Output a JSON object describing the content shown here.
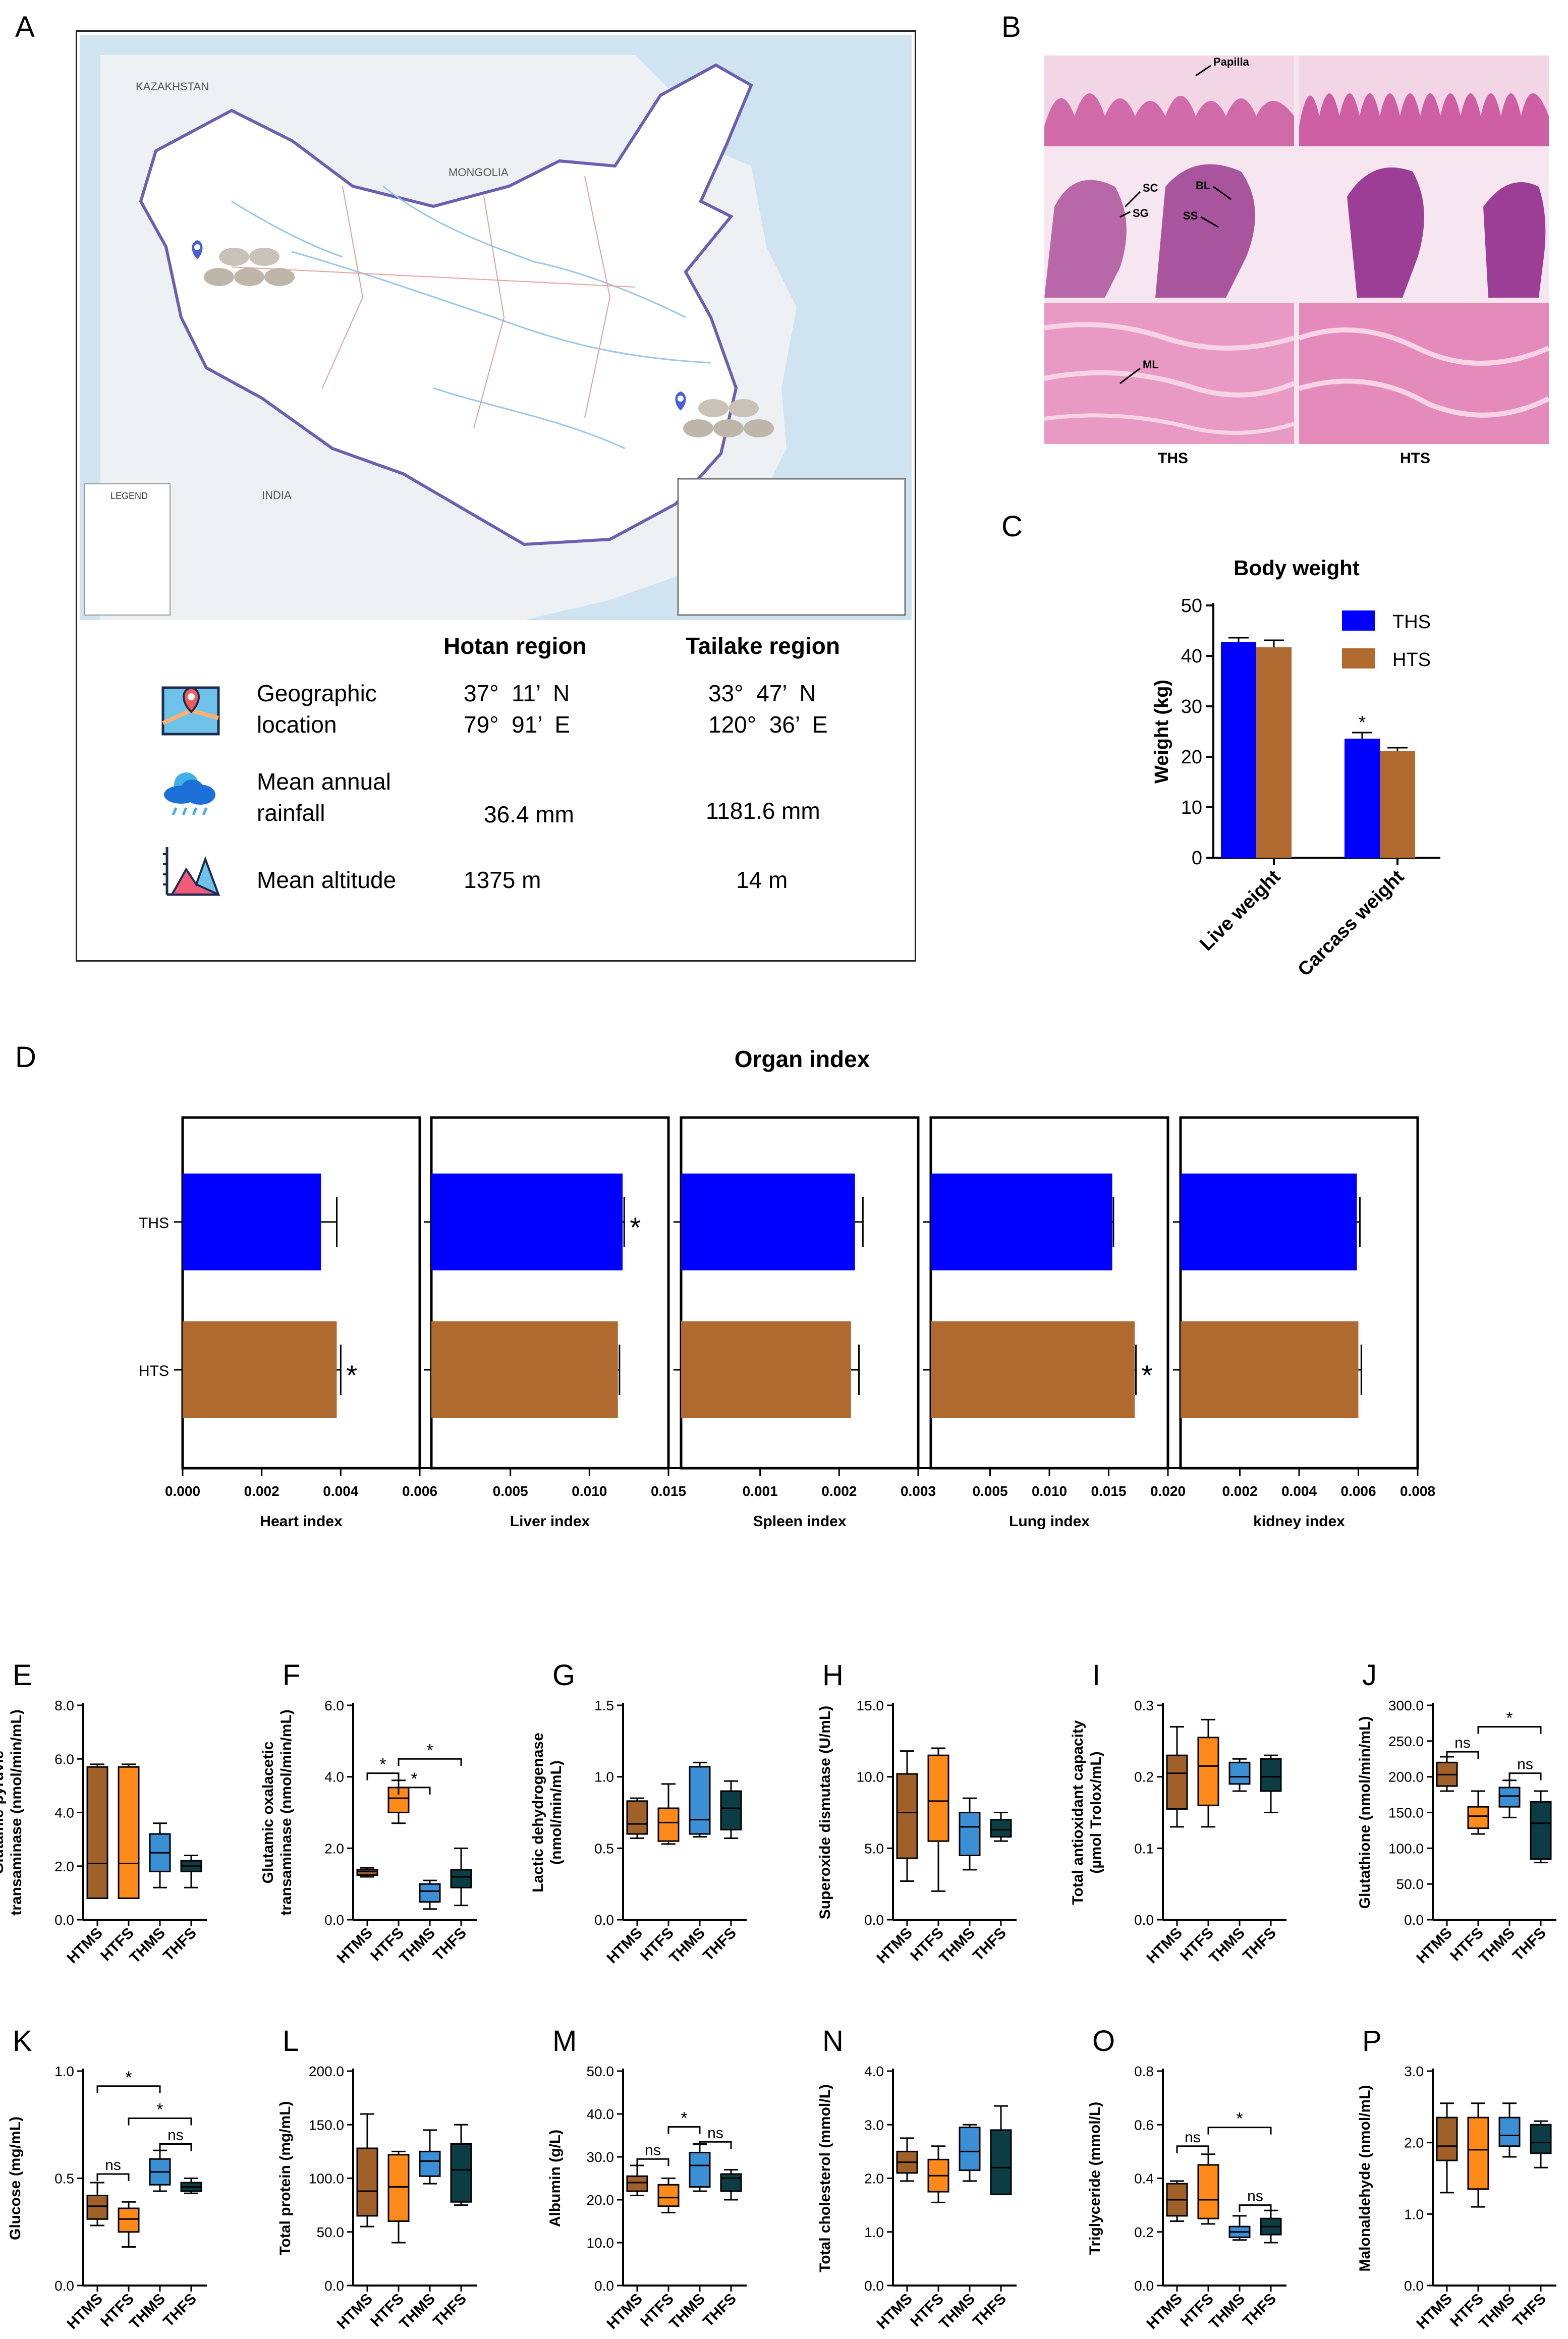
{
  "panels": {
    "A": "A",
    "B": "B",
    "C": "C",
    "D": "D",
    "E": "E",
    "F": "F",
    "G": "G",
    "H": "H",
    "I": "I",
    "J": "J",
    "K": "K",
    "L": "L",
    "M": "M",
    "N": "N",
    "O": "O",
    "P": "P"
  },
  "map": {
    "country_labels": [
      "KAZAKHSTAN",
      "MONGOLIA",
      "INDIA"
    ],
    "legend_title": "LEGEND",
    "pins": [
      "Hotan",
      "Tailake"
    ]
  },
  "info": {
    "col_hotan": "Hotan region",
    "col_tailake": "Tailake region",
    "rows": [
      {
        "icon": "map-location-icon",
        "label": "Geographic\nlocation",
        "hotan": "37°  11’  N\n79°  91’  E",
        "tailake": "33°  47’  N\n120°  36’  E"
      },
      {
        "icon": "rain-cloud-icon",
        "label": "Mean annual\nrainfall",
        "hotan": "36.4 mm",
        "tailake": "1181.6 mm"
      },
      {
        "icon": "mountain-altitude-icon",
        "label": "Mean altitude",
        "hotan": "1375 m",
        "tailake": "14 m"
      }
    ]
  },
  "histology": {
    "labels": [
      "Papilla",
      "SC",
      "SG",
      "BL",
      "SS",
      "ML"
    ],
    "captions": [
      "THS",
      "HTS"
    ]
  },
  "colors": {
    "ths": "#0000ff",
    "hts": "#b06a30",
    "htms": "#a0602a",
    "htfs": "#ff8a1a",
    "thms": "#3b8fd4",
    "thfs": "#0c3d44"
  },
  "chart_data": [
    {
      "id": "C",
      "type": "bar",
      "title": "Body weight",
      "ylabel": "Weight (kg)",
      "categories": [
        "Live weight",
        "Carcass weight"
      ],
      "series": [
        {
          "name": "THS",
          "values": [
            42.8,
            23.6
          ],
          "errors": [
            0.8,
            1.2
          ]
        },
        {
          "name": "HTS",
          "values": [
            41.7,
            21.1
          ],
          "errors": [
            1.4,
            0.7
          ]
        }
      ],
      "ylim": [
        0,
        50
      ],
      "yticks": [
        0,
        10,
        20,
        30,
        40,
        50
      ],
      "annotations": [
        {
          "category": "Carcass weight",
          "series": "THS",
          "text": "*"
        }
      ]
    },
    {
      "id": "D",
      "type": "bar",
      "orientation": "horizontal",
      "title": "Organ index",
      "groups": [
        "THS",
        "HTS"
      ],
      "subplots": [
        {
          "xlabel": "Heart index",
          "values": [
            0.0035,
            0.0039
          ],
          "errors": [
            0.0004,
            0.0001
          ],
          "xlim": [
            0,
            0.006
          ],
          "xticks": [
            "0.000",
            "0.002",
            "0.004",
            "0.006"
          ],
          "stars": [
            "",
            "*"
          ]
        },
        {
          "xlabel": "Liver index",
          "values": [
            0.0121,
            0.0118
          ],
          "errors": [
            0.0001,
            0.0001
          ],
          "xlim": [
            0,
            0.015
          ],
          "xticks": [
            "0.005",
            "0.010",
            "0.015"
          ],
          "stars": [
            "*",
            ""
          ]
        },
        {
          "xlabel": "Spleen index",
          "values": [
            0.0022,
            0.00215
          ],
          "errors": [
            0.0001,
            0.0001
          ],
          "xlim": [
            0,
            0.003
          ],
          "xticks": [
            "0.001",
            "0.002",
            "0.003"
          ],
          "stars": [
            "",
            ""
          ]
        },
        {
          "xlabel": "Lung index",
          "values": [
            0.0153,
            0.0172
          ],
          "errors": [
            0.0001,
            0.0001
          ],
          "xlim": [
            0,
            0.02
          ],
          "xticks": [
            "0.005",
            "0.010",
            "0.015",
            "0.020"
          ],
          "stars": [
            "",
            "*"
          ]
        },
        {
          "xlabel": "kidney index",
          "values": [
            0.00595,
            0.006
          ],
          "errors": [
            0.0001,
            0.0001
          ],
          "xlim": [
            0,
            0.008
          ],
          "xticks": [
            "0.002",
            "0.004",
            "0.006",
            "0.008"
          ],
          "stars": [
            "",
            ""
          ]
        }
      ]
    },
    {
      "id": "E",
      "type": "box",
      "ylabel": "Glutamic-pyruvic\ntransaminase (nmol/min/mL)",
      "categories": [
        "HTMS",
        "HTFS",
        "THMS",
        "THFS"
      ],
      "ylim": [
        0,
        8
      ],
      "yticks": [
        "0.0",
        "2.0",
        "4.0",
        "6.0",
        "8.0"
      ],
      "boxes": [
        {
          "min": 0.8,
          "q1": 0.8,
          "median": 2.1,
          "q3": 5.7,
          "max": 5.8
        },
        {
          "min": 0.8,
          "q1": 0.8,
          "median": 2.1,
          "q3": 5.7,
          "max": 5.8
        },
        {
          "min": 1.2,
          "q1": 1.8,
          "median": 2.5,
          "q3": 3.2,
          "max": 3.6
        },
        {
          "min": 1.2,
          "q1": 1.8,
          "median": 2.0,
          "q3": 2.2,
          "max": 2.4
        }
      ],
      "brackets": []
    },
    {
      "id": "F",
      "type": "box",
      "ylabel": "Glutamic oxalacetic\ntransaminase (nmol/min/mL)",
      "categories": [
        "HTMS",
        "HTFS",
        "THMS",
        "THFS"
      ],
      "ylim": [
        0,
        6
      ],
      "yticks": [
        "0.0",
        "2.0",
        "4.0",
        "6.0"
      ],
      "boxes": [
        {
          "min": 1.2,
          "q1": 1.25,
          "median": 1.35,
          "q3": 1.4,
          "max": 1.45
        },
        {
          "min": 2.7,
          "q1": 3.0,
          "median": 3.4,
          "q3": 3.7,
          "max": 3.9
        },
        {
          "min": 0.3,
          "q1": 0.5,
          "median": 0.8,
          "q3": 1.0,
          "max": 1.1
        },
        {
          "min": 0.4,
          "q1": 0.9,
          "median": 1.2,
          "q3": 1.4,
          "max": 2.0
        }
      ],
      "brackets": [
        {
          "from": 0,
          "to": 1,
          "y": 4.1,
          "text": "*"
        },
        {
          "from": 1,
          "to": 2,
          "y": 3.7,
          "text": "*"
        },
        {
          "from": 1,
          "to": 3,
          "y": 4.5,
          "text": "*"
        }
      ]
    },
    {
      "id": "G",
      "type": "box",
      "ylabel": "Lactic dehydrogenase\n(nmol/min/mL)",
      "categories": [
        "HTMS",
        "HTFS",
        "THMS",
        "THFS"
      ],
      "ylim": [
        0,
        1.5
      ],
      "yticks": [
        "0.0",
        "0.5",
        "1.0",
        "1.5"
      ],
      "boxes": [
        {
          "min": 0.57,
          "q1": 0.6,
          "median": 0.67,
          "q3": 0.83,
          "max": 0.85
        },
        {
          "min": 0.53,
          "q1": 0.55,
          "median": 0.68,
          "q3": 0.78,
          "max": 0.95
        },
        {
          "min": 0.58,
          "q1": 0.6,
          "median": 0.7,
          "q3": 1.07,
          "max": 1.1
        },
        {
          "min": 0.57,
          "q1": 0.63,
          "median": 0.78,
          "q3": 0.9,
          "max": 0.97
        }
      ],
      "brackets": []
    },
    {
      "id": "H",
      "type": "box",
      "ylabel": "Superoxide dismutase (U/mL)",
      "categories": [
        "HTMS",
        "HTFS",
        "THMS",
        "THFS"
      ],
      "ylim": [
        0,
        15
      ],
      "yticks": [
        "0.0",
        "5.0",
        "10.0",
        "15.0"
      ],
      "boxes": [
        {
          "min": 2.7,
          "q1": 4.3,
          "median": 7.5,
          "q3": 10.2,
          "max": 11.8
        },
        {
          "min": 2.0,
          "q1": 5.5,
          "median": 8.3,
          "q3": 11.5,
          "max": 12.0
        },
        {
          "min": 3.5,
          "q1": 4.5,
          "median": 6.5,
          "q3": 7.5,
          "max": 8.5
        },
        {
          "min": 5.5,
          "q1": 5.8,
          "median": 6.3,
          "q3": 7.0,
          "max": 7.5
        }
      ],
      "brackets": []
    },
    {
      "id": "I",
      "type": "box",
      "ylabel": "Total antioxidant capacity\n(µmol Trolox/mL)",
      "categories": [
        "HTMS",
        "HTFS",
        "THMS",
        "THFS"
      ],
      "ylim": [
        0,
        0.3
      ],
      "yticks": [
        "0.0",
        "0.1",
        "0.2",
        "0.3"
      ],
      "boxes": [
        {
          "min": 0.13,
          "q1": 0.155,
          "median": 0.205,
          "q3": 0.23,
          "max": 0.27
        },
        {
          "min": 0.13,
          "q1": 0.16,
          "median": 0.215,
          "q3": 0.255,
          "max": 0.28
        },
        {
          "min": 0.18,
          "q1": 0.19,
          "median": 0.2,
          "q3": 0.22,
          "max": 0.225
        },
        {
          "min": 0.15,
          "q1": 0.18,
          "median": 0.2,
          "q3": 0.225,
          "max": 0.23
        }
      ],
      "brackets": []
    },
    {
      "id": "J",
      "type": "box",
      "ylabel": "Glutathione (nmol/min/mL)",
      "categories": [
        "HTMS",
        "HTFS",
        "THMS",
        "THFS"
      ],
      "ylim": [
        0,
        300
      ],
      "yticks": [
        "0.0",
        "50.0",
        "100.0",
        "150.0",
        "200.0",
        "250.0",
        "300.0"
      ],
      "boxes": [
        {
          "min": 180,
          "q1": 187,
          "median": 203,
          "q3": 220,
          "max": 228
        },
        {
          "min": 120,
          "q1": 128,
          "median": 145,
          "q3": 158,
          "max": 180
        },
        {
          "min": 143,
          "q1": 158,
          "median": 173,
          "q3": 185,
          "max": 195
        },
        {
          "min": 80,
          "q1": 85,
          "median": 135,
          "q3": 165,
          "max": 180
        }
      ],
      "brackets": [
        {
          "from": 0,
          "to": 1,
          "y": 235,
          "text": "ns"
        },
        {
          "from": 1,
          "to": 3,
          "y": 270,
          "text": "*"
        },
        {
          "from": 2,
          "to": 3,
          "y": 205,
          "text": "ns"
        }
      ]
    },
    {
      "id": "K",
      "type": "box",
      "ylabel": "Glucose  (mg/mL)",
      "categories": [
        "HTMS",
        "HTFS",
        "THMS",
        "THFS"
      ],
      "ylim": [
        0,
        1.0
      ],
      "yticks": [
        "0.0",
        "0.5",
        "1.0"
      ],
      "boxes": [
        {
          "min": 0.28,
          "q1": 0.31,
          "median": 0.37,
          "q3": 0.42,
          "max": 0.48
        },
        {
          "min": 0.18,
          "q1": 0.25,
          "median": 0.31,
          "q3": 0.36,
          "max": 0.39
        },
        {
          "min": 0.44,
          "q1": 0.47,
          "median": 0.53,
          "q3": 0.59,
          "max": 0.63
        },
        {
          "min": 0.43,
          "q1": 0.44,
          "median": 0.46,
          "q3": 0.48,
          "max": 0.5
        }
      ],
      "brackets": [
        {
          "from": 0,
          "to": 1,
          "y": 0.52,
          "text": "ns"
        },
        {
          "from": 0,
          "to": 2,
          "y": 0.93,
          "text": "*"
        },
        {
          "from": 1,
          "to": 3,
          "y": 0.78,
          "text": "*"
        },
        {
          "from": 2,
          "to": 3,
          "y": 0.66,
          "text": "ns"
        }
      ]
    },
    {
      "id": "L",
      "type": "box",
      "ylabel": "Total protein (mg/mL)",
      "categories": [
        "HTMS",
        "HTFS",
        "THMS",
        "THFS"
      ],
      "ylim": [
        0,
        200
      ],
      "yticks": [
        "0.0",
        "50.0",
        "100.0",
        "150.0",
        "200.0"
      ],
      "boxes": [
        {
          "min": 55,
          "q1": 65,
          "median": 88,
          "q3": 128,
          "max": 160
        },
        {
          "min": 40,
          "q1": 60,
          "median": 92,
          "q3": 122,
          "max": 125
        },
        {
          "min": 95,
          "q1": 102,
          "median": 116,
          "q3": 125,
          "max": 145
        },
        {
          "min": 75,
          "q1": 78,
          "median": 108,
          "q3": 132,
          "max": 150
        }
      ],
      "brackets": []
    },
    {
      "id": "M",
      "type": "box",
      "ylabel": "Albumin (g/L)",
      "categories": [
        "HTMS",
        "HTFS",
        "THMS",
        "THFS"
      ],
      "ylim": [
        0,
        50
      ],
      "yticks": [
        "0.0",
        "10.0",
        "20.0",
        "30.0",
        "40.0",
        "50.0"
      ],
      "boxes": [
        {
          "min": 21,
          "q1": 22,
          "median": 24,
          "q3": 25.5,
          "max": 28
        },
        {
          "min": 17,
          "q1": 18.5,
          "median": 20.5,
          "q3": 23.5,
          "max": 25
        },
        {
          "min": 22,
          "q1": 23,
          "median": 28,
          "q3": 31,
          "max": 33
        },
        {
          "min": 20,
          "q1": 22,
          "median": 25,
          "q3": 26,
          "max": 27
        }
      ],
      "brackets": [
        {
          "from": 0,
          "to": 1,
          "y": 29.5,
          "text": "ns"
        },
        {
          "from": 1,
          "to": 2,
          "y": 37,
          "text": "*"
        },
        {
          "from": 2,
          "to": 3,
          "y": 33.5,
          "text": "ns"
        }
      ]
    },
    {
      "id": "N",
      "type": "box",
      "ylabel": "Total cholesterol (mmol/L)",
      "categories": [
        "HTMS",
        "HTFS",
        "THMS",
        "THFS"
      ],
      "ylim": [
        0,
        4
      ],
      "yticks": [
        "0.0",
        "1.0",
        "2.0",
        "3.0",
        "4.0"
      ],
      "boxes": [
        {
          "min": 1.95,
          "q1": 2.1,
          "median": 2.3,
          "q3": 2.5,
          "max": 2.75
        },
        {
          "min": 1.55,
          "q1": 1.75,
          "median": 2.05,
          "q3": 2.35,
          "max": 2.6
        },
        {
          "min": 1.95,
          "q1": 2.15,
          "median": 2.5,
          "q3": 2.95,
          "max": 3.0
        },
        {
          "min": 1.7,
          "q1": 1.7,
          "median": 2.2,
          "q3": 2.9,
          "max": 3.35
        }
      ],
      "brackets": []
    },
    {
      "id": "O",
      "type": "box",
      "ylabel": "Triglyceride (mmol/L)",
      "categories": [
        "HTMS",
        "HTFS",
        "THMS",
        "THFS"
      ],
      "ylim": [
        0,
        0.8
      ],
      "yticks": [
        "0.0",
        "0.2",
        "0.4",
        "0.6",
        "0.8"
      ],
      "boxes": [
        {
          "min": 0.24,
          "q1": 0.26,
          "median": 0.32,
          "q3": 0.38,
          "max": 0.39
        },
        {
          "min": 0.23,
          "q1": 0.25,
          "median": 0.32,
          "q3": 0.45,
          "max": 0.49
        },
        {
          "min": 0.17,
          "q1": 0.18,
          "median": 0.2,
          "q3": 0.22,
          "max": 0.26
        },
        {
          "min": 0.16,
          "q1": 0.19,
          "median": 0.22,
          "q3": 0.25,
          "max": 0.28
        }
      ],
      "brackets": [
        {
          "from": 0,
          "to": 1,
          "y": 0.52,
          "text": "ns"
        },
        {
          "from": 1,
          "to": 3,
          "y": 0.59,
          "text": "*"
        },
        {
          "from": 2,
          "to": 3,
          "y": 0.3,
          "text": "ns"
        }
      ]
    },
    {
      "id": "P",
      "type": "box",
      "ylabel": "Malonaldehyde (nmol/mL)",
      "categories": [
        "HTMS",
        "HTFS",
        "THMS",
        "THFS"
      ],
      "ylim": [
        0,
        3
      ],
      "yticks": [
        "0.0",
        "1.0",
        "2.0",
        "3.0"
      ],
      "boxes": [
        {
          "min": 1.3,
          "q1": 1.75,
          "median": 1.95,
          "q3": 2.35,
          "max": 2.55
        },
        {
          "min": 1.1,
          "q1": 1.35,
          "median": 1.9,
          "q3": 2.35,
          "max": 2.55
        },
        {
          "min": 1.8,
          "q1": 1.95,
          "median": 2.1,
          "q3": 2.35,
          "max": 2.55
        },
        {
          "min": 1.65,
          "q1": 1.85,
          "median": 2.0,
          "q3": 2.25,
          "max": 2.3
        }
      ],
      "brackets": []
    }
  ]
}
